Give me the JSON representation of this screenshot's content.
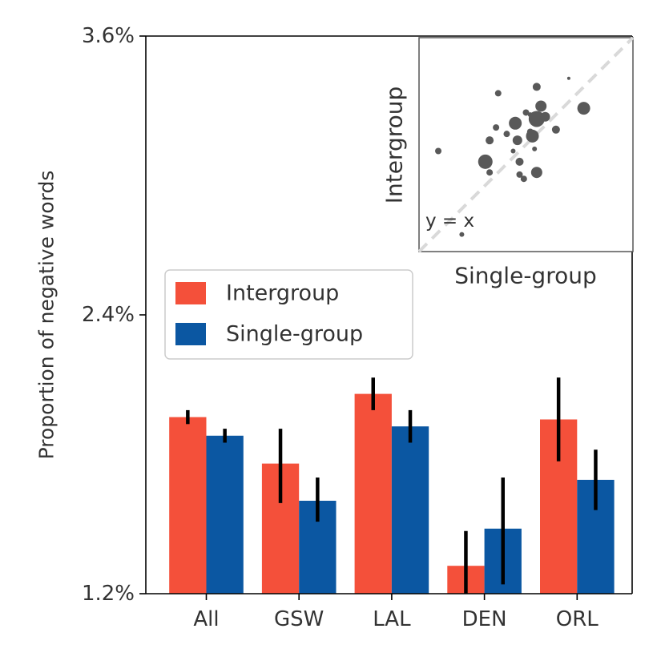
{
  "chart_data": [
    {
      "type": "bar",
      "ylabel": "Proportion of negative words",
      "ylim": [
        1.2,
        3.6
      ],
      "yticks": [
        "1.2%",
        "2.4%",
        "3.6%"
      ],
      "categories": [
        "All",
        "GSW",
        "LAL",
        "DEN",
        "ORL"
      ],
      "series": [
        {
          "name": "Intergroup",
          "color": "#f4503a",
          "values": [
            1.96,
            1.76,
            2.06,
            1.32,
            1.95
          ],
          "err_low": [
            1.93,
            1.59,
            1.99,
            1.2,
            1.77
          ],
          "err_high": [
            1.99,
            1.91,
            2.13,
            1.47,
            2.13
          ]
        },
        {
          "name": "Single-group",
          "color": "#0b57a2",
          "values": [
            1.88,
            1.6,
            1.92,
            1.48,
            1.69
          ],
          "err_low": [
            1.85,
            1.51,
            1.85,
            1.24,
            1.56
          ],
          "err_high": [
            1.91,
            1.7,
            1.99,
            1.7,
            1.82
          ]
        }
      ],
      "legend": {
        "placement": "left-middle"
      },
      "grid": false
    },
    {
      "type": "scatter",
      "xlabel": "Single-group",
      "ylabel": "Intergroup",
      "annotation": "y = x",
      "reference_line": "y = x",
      "xlim": [
        0,
        1
      ],
      "ylim": [
        0,
        1
      ],
      "color": "#595959",
      "points": [
        {
          "x": 0.09,
          "y": 0.47,
          "size": 2
        },
        {
          "x": 0.2,
          "y": 0.08,
          "size": 1.5
        },
        {
          "x": 0.31,
          "y": 0.42,
          "size": 4.5
        },
        {
          "x": 0.33,
          "y": 0.52,
          "size": 2.5
        },
        {
          "x": 0.33,
          "y": 0.37,
          "size": 2
        },
        {
          "x": 0.36,
          "y": 0.58,
          "size": 2
        },
        {
          "x": 0.37,
          "y": 0.74,
          "size": 2
        },
        {
          "x": 0.41,
          "y": 0.55,
          "size": 2
        },
        {
          "x": 0.44,
          "y": 0.47,
          "size": 1.5
        },
        {
          "x": 0.45,
          "y": 0.6,
          "size": 4
        },
        {
          "x": 0.46,
          "y": 0.52,
          "size": 3
        },
        {
          "x": 0.47,
          "y": 0.42,
          "size": 2.5
        },
        {
          "x": 0.47,
          "y": 0.36,
          "size": 2
        },
        {
          "x": 0.49,
          "y": 0.34,
          "size": 2
        },
        {
          "x": 0.5,
          "y": 0.65,
          "size": 2
        },
        {
          "x": 0.52,
          "y": 0.56,
          "size": 2
        },
        {
          "x": 0.52,
          "y": 0.64,
          "size": 1.5
        },
        {
          "x": 0.53,
          "y": 0.54,
          "size": 4
        },
        {
          "x": 0.54,
          "y": 0.48,
          "size": 1.5
        },
        {
          "x": 0.55,
          "y": 0.37,
          "size": 3.5
        },
        {
          "x": 0.55,
          "y": 0.77,
          "size": 2.5
        },
        {
          "x": 0.55,
          "y": 0.62,
          "size": 5
        },
        {
          "x": 0.57,
          "y": 0.68,
          "size": 3.5
        },
        {
          "x": 0.59,
          "y": 0.63,
          "size": 3
        },
        {
          "x": 0.64,
          "y": 0.57,
          "size": 2.5
        },
        {
          "x": 0.7,
          "y": 0.81,
          "size": 1
        },
        {
          "x": 0.77,
          "y": 0.67,
          "size": 4
        }
      ]
    }
  ]
}
